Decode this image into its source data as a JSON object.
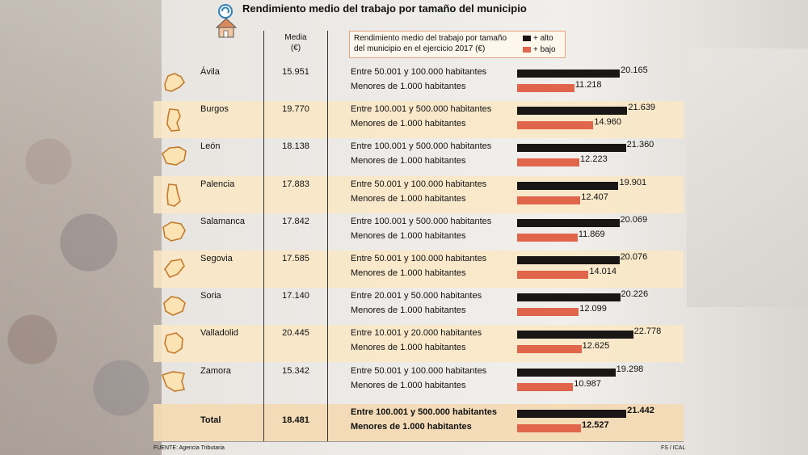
{
  "title": "Rendimiento medio del trabajo por tamaño del municipio",
  "header": {
    "media_label": "Media",
    "media_unit": "(€)",
    "legend_text": "Rendimiento medio del trabajo por tamaño del municipio en el ejercicio 2017 (€)",
    "legend_high": "+ alto",
    "legend_low": "+ bajo"
  },
  "colors": {
    "high": "#1b1616",
    "low": "#e0654b",
    "tint": "#fae8c4"
  },
  "footer": {
    "source": "FUENTE: Agencia Tributaria",
    "credit": "FS / ICAL"
  },
  "chart_data": {
    "type": "bar",
    "title": "Rendimiento medio del trabajo por tamaño del municipio",
    "xlim": [
      0,
      23000
    ],
    "series": [
      {
        "name": "+ alto"
      },
      {
        "name": "+ bajo"
      }
    ],
    "rows": [
      {
        "province": "Ávila",
        "media": "15.951",
        "high_label": "Entre 50.001 y 100.000 habitantes",
        "high_value": 20165,
        "high_text": "20.165",
        "low_label": "Menores de 1.000 habitantes",
        "low_value": 11218,
        "low_text": "11.218"
      },
      {
        "province": "Burgos",
        "media": "19.770",
        "high_label": "Entre 100.001 y 500.000 habitantes",
        "high_value": 21639,
        "high_text": "21.639",
        "low_label": "Menores de 1.000 habitantes",
        "low_value": 14960,
        "low_text": "14.960"
      },
      {
        "province": "León",
        "media": "18.138",
        "high_label": "Entre 100.001 y 500.000 habitantes",
        "high_value": 21360,
        "high_text": "21.360",
        "low_label": "Menores de 1.000 habitantes",
        "low_value": 12223,
        "low_text": "12.223"
      },
      {
        "province": "Palencia",
        "media": "17.883",
        "high_label": "Entre 50.001 y 100.000 habitantes",
        "high_value": 19901,
        "high_text": "19.901",
        "low_label": "Menores de 1.000 habitantes",
        "low_value": 12407,
        "low_text": "12.407"
      },
      {
        "province": "Salamanca",
        "media": "17.842",
        "high_label": "Entre 100.001 y 500.000 habitantes",
        "high_value": 20069,
        "high_text": "20.069",
        "low_label": "Menores de 1.000 habitantes",
        "low_value": 11869,
        "low_text": "11.869"
      },
      {
        "province": "Segovia",
        "media": "17.585",
        "high_label": "Entre 50.001 y 100.000 habitantes",
        "high_value": 20076,
        "high_text": "20.076",
        "low_label": "Menores de 1.000 habitantes",
        "low_value": 14014,
        "low_text": "14.014"
      },
      {
        "province": "Soria",
        "media": "17.140",
        "high_label": "Entre 20.001 y 50.000 habitantes",
        "high_value": 20226,
        "high_text": "20.226",
        "low_label": "Menores de 1.000 habitantes",
        "low_value": 12099,
        "low_text": "12.099"
      },
      {
        "province": "Valladolid",
        "media": "20.445",
        "high_label": "Entre 10.001 y 20.000 habitantes",
        "high_value": 22778,
        "high_text": "22.778",
        "low_label": "Menores de 1.000 habitantes",
        "low_value": 12625,
        "low_text": "12.625"
      },
      {
        "province": "Zamora",
        "media": "15.342",
        "high_label": "Entre 50.001 y 100.000 habitantes",
        "high_value": 19298,
        "high_text": "19.298",
        "low_label": "Menores de 1.000 habitantes",
        "low_value": 10987,
        "low_text": "10.987"
      },
      {
        "province": "Total",
        "media": "18.481",
        "high_label": "Entre 100.001 y 500.000 habitantes",
        "high_value": 21442,
        "high_text": "21.442",
        "low_label": "Menores de 1.000 habitantes",
        "low_value": 12527,
        "low_text": "12.527"
      }
    ]
  }
}
